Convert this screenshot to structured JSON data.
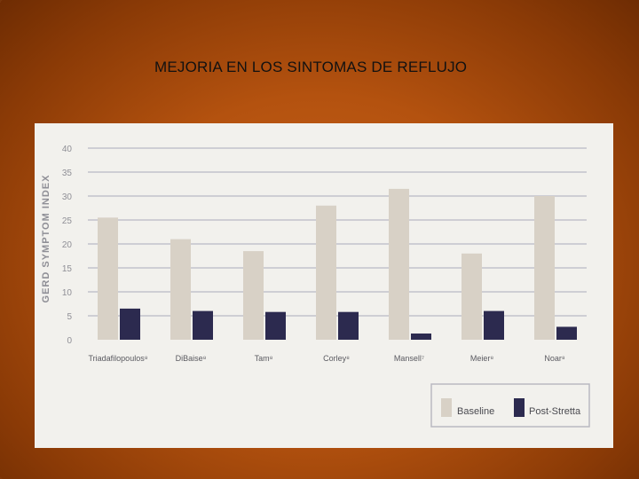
{
  "slide": {
    "title": "MEJORIA EN LOS SINTOMAS DE REFLUJO"
  },
  "colors": {
    "baseline": "#d8d1c6",
    "post_stretta": "#2c2a4f",
    "gridline": "#b9b9c6",
    "panel": "#f2f1ed"
  },
  "chart_data": {
    "type": "bar",
    "title": "",
    "ylabel": "GERD SYMPTOM INDEX",
    "xlabel": "",
    "ylim": [
      0,
      40
    ],
    "yticks": [
      "0",
      "5",
      "10",
      "15",
      "20",
      "25",
      "30",
      "35",
      "40"
    ],
    "grid": true,
    "legend_position": "bottom-right",
    "categories": [
      "Triadafilopoulos⁸",
      "DiBaise⁸",
      "Tam⁸",
      "Corley⁸",
      "Mansell⁷",
      "Meier⁸",
      "Noar⁸"
    ],
    "series": [
      {
        "name": "Baseline",
        "values": [
          25.5,
          21,
          18.5,
          28,
          31.5,
          18,
          30
        ]
      },
      {
        "name": "Post-Stretta",
        "values": [
          6.5,
          6,
          5.8,
          5.8,
          1.3,
          6,
          2.7
        ]
      }
    ]
  }
}
